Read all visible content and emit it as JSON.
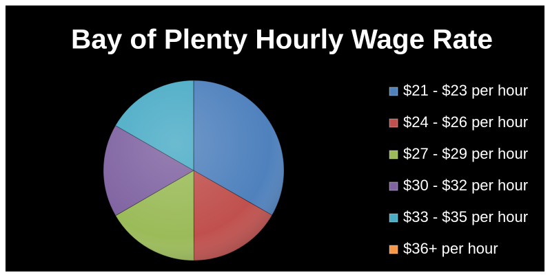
{
  "chart_data": {
    "type": "pie",
    "title": "Bay of Plenty Hourly Wage Rate",
    "categories": [
      "$21 - $23 per hour",
      "$24 - $26 per hour",
      "$27 - $29 per hour",
      "$30 - $32 per hour",
      "$33 - $35 per hour",
      "$36+ per hour"
    ],
    "values": [
      33.3,
      16.7,
      16.7,
      16.7,
      16.7,
      0
    ],
    "colors": [
      "#4f81bd",
      "#c0504d",
      "#9bbb59",
      "#8064a2",
      "#4bacc6",
      "#f79646"
    ],
    "legend": "right"
  }
}
